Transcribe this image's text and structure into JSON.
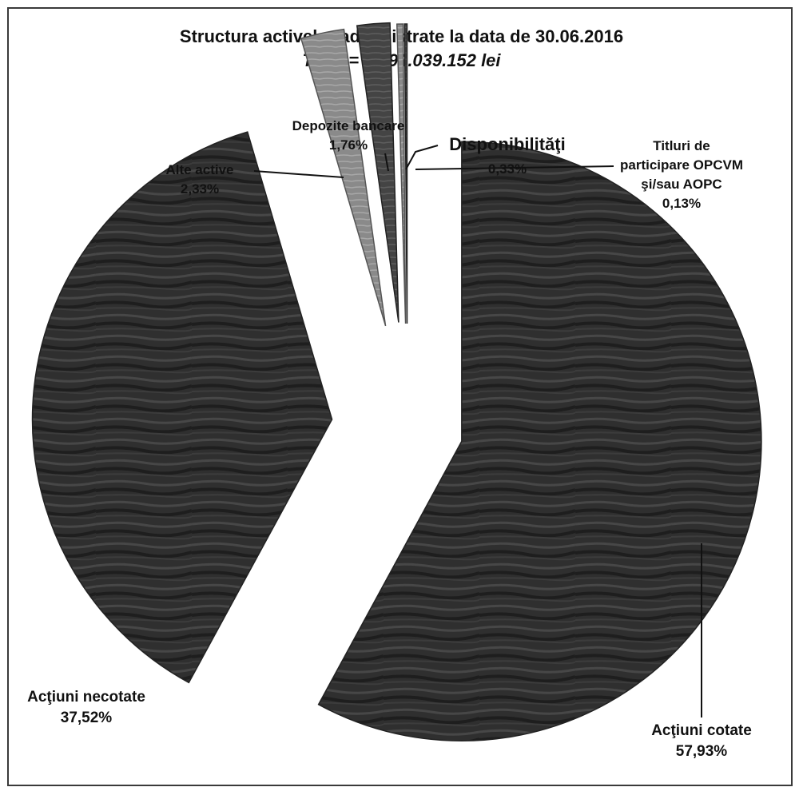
{
  "chart_data": {
    "type": "pie",
    "title": "Structura activelor administrate la data de 30.06.2016",
    "subtitle": "Total = 1.594.039.152  lei",
    "slices": [
      {
        "label": "Acţiuni cotate",
        "value": 57.93,
        "value_label": "57,93%"
      },
      {
        "label": "Acţiuni necotate",
        "value": 37.52,
        "value_label": "37,52%"
      },
      {
        "label": "Alte active",
        "value": 2.33,
        "value_label": "2,33%"
      },
      {
        "label": "Depozite bancare",
        "value": 1.76,
        "value_label": "1,76%"
      },
      {
        "label": "Disponibilităţi",
        "value": 0.33,
        "value_label": "0,33%"
      },
      {
        "label": "Titluri de participare OPCVM şi/sau AOPC",
        "value": 0.13,
        "value_label": "0,13%"
      }
    ],
    "legend": "none",
    "exploded": true
  }
}
